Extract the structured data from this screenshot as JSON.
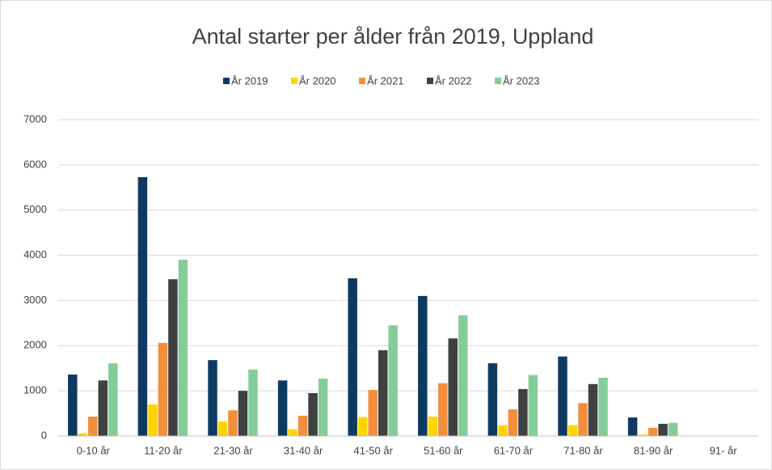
{
  "chart_data": {
    "type": "bar",
    "title": "Antal starter per ålder från 2019, Uppland",
    "categories": [
      "0-10 år",
      "11-20 år",
      "21-30 år",
      "31-40 år",
      "41-50 år",
      "51-60 år",
      "61-70 år",
      "71-80 år",
      "81-90 år",
      "91- år"
    ],
    "series": [
      {
        "name": "År 2019",
        "color": "#0e3a62",
        "values": [
          1360,
          5730,
          1680,
          1230,
          3490,
          3100,
          1610,
          1760,
          410,
          0
        ]
      },
      {
        "name": "År 2020",
        "color": "#ffd500",
        "values": [
          60,
          700,
          320,
          150,
          420,
          430,
          240,
          240,
          30,
          0
        ]
      },
      {
        "name": "År 2021",
        "color": "#f28f3c",
        "values": [
          430,
          2060,
          570,
          450,
          1020,
          1170,
          590,
          730,
          180,
          0
        ]
      },
      {
        "name": "År 2022",
        "color": "#404040",
        "values": [
          1230,
          3470,
          1000,
          950,
          1900,
          2160,
          1040,
          1150,
          270,
          0
        ]
      },
      {
        "name": "År 2023",
        "color": "#84cc98",
        "values": [
          1610,
          3900,
          1470,
          1270,
          2450,
          2670,
          1350,
          1290,
          290,
          0
        ]
      }
    ],
    "ylim": [
      0,
      7000
    ],
    "yticks": [
      0,
      1000,
      2000,
      3000,
      4000,
      5000,
      6000,
      7000
    ],
    "grid": true,
    "legend": "top"
  }
}
